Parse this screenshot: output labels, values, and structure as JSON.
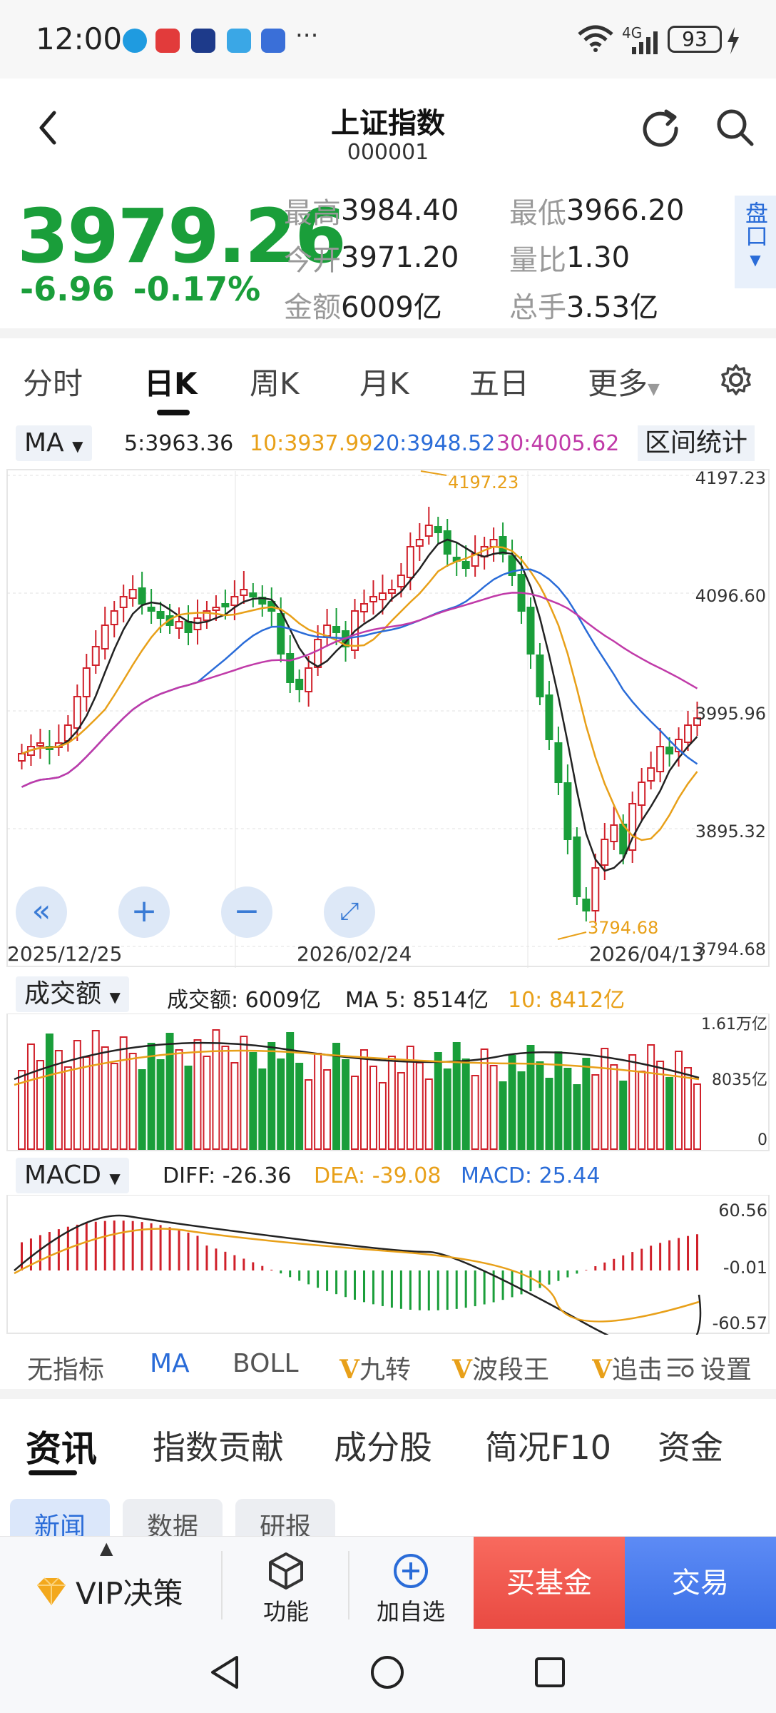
{
  "status": {
    "time": "12:00",
    "net_label": "4G",
    "battery": "93"
  },
  "header": {
    "title": "上证指数",
    "code": "000001"
  },
  "quote": {
    "price": "3979.26",
    "change": "-6.96",
    "change_pct": "-0.17%",
    "stats": [
      {
        "label": "最高",
        "value": "3984.40"
      },
      {
        "label": "最低",
        "value": "3966.20"
      },
      {
        "label": "今开",
        "value": "3971.20"
      },
      {
        "label": "量比",
        "value": "1.30"
      },
      {
        "label": "金额",
        "value": "6009亿"
      },
      {
        "label": "总手",
        "value": "3.53亿"
      }
    ],
    "side_button": "盘口"
  },
  "period_tabs": [
    "分时",
    "日K",
    "周K",
    "月K",
    "五日",
    "更多"
  ],
  "active_period": "日K",
  "ma_bar": {
    "selector": "MA",
    "values": [
      {
        "text": "5:3963.36",
        "color": "#222222"
      },
      {
        "text": "10:3937.99",
        "color": "#e8a019"
      },
      {
        "text": "20:3948.52",
        "color": "#2a6cd8"
      },
      {
        "text": "30:4005.62",
        "color": "#c03aa8"
      }
    ],
    "range_stats": "区间统计"
  },
  "kline": {
    "y_ticks": [
      "4197.23",
      "4096.60",
      "3995.96",
      "3895.32",
      "3794.68"
    ],
    "x_ticks": [
      "2025/12/25",
      "2026/02/24",
      "2026/04/13"
    ],
    "max_label": "4197.23",
    "min_label": "3794.68"
  },
  "volume_bar": {
    "selector": "成交额",
    "amount": "成交额: 6009亿",
    "ma5": "MA 5: 8514亿",
    "ma10": "10: 8412亿"
  },
  "volume_axis": [
    "1.61万亿",
    "8035亿",
    "0"
  ],
  "macd_bar": {
    "selector": "MACD",
    "diff": "DIFF: -26.36",
    "dea": "DEA: -39.08",
    "macd": "MACD: 25.44"
  },
  "macd_axis": [
    "60.56",
    "-0.01",
    "-60.57"
  ],
  "indicator_tabs": [
    "无指标",
    "MA",
    "BOLL",
    "九转",
    "波段王",
    "追击",
    "设置"
  ],
  "info_tabs": [
    "资讯",
    "指数贡献",
    "成分股",
    "简况F10",
    "资金"
  ],
  "sub_tabs": [
    "新闻",
    "数据",
    "研报"
  ],
  "bottom": {
    "vip": "VIP决策",
    "func": "功能",
    "add": "加自选",
    "buy_fund": "买基金",
    "trade": "交易"
  },
  "colors": {
    "up": "#d0202a",
    "down": "#1a9e3a",
    "accent": "#2a6cd8"
  }
}
